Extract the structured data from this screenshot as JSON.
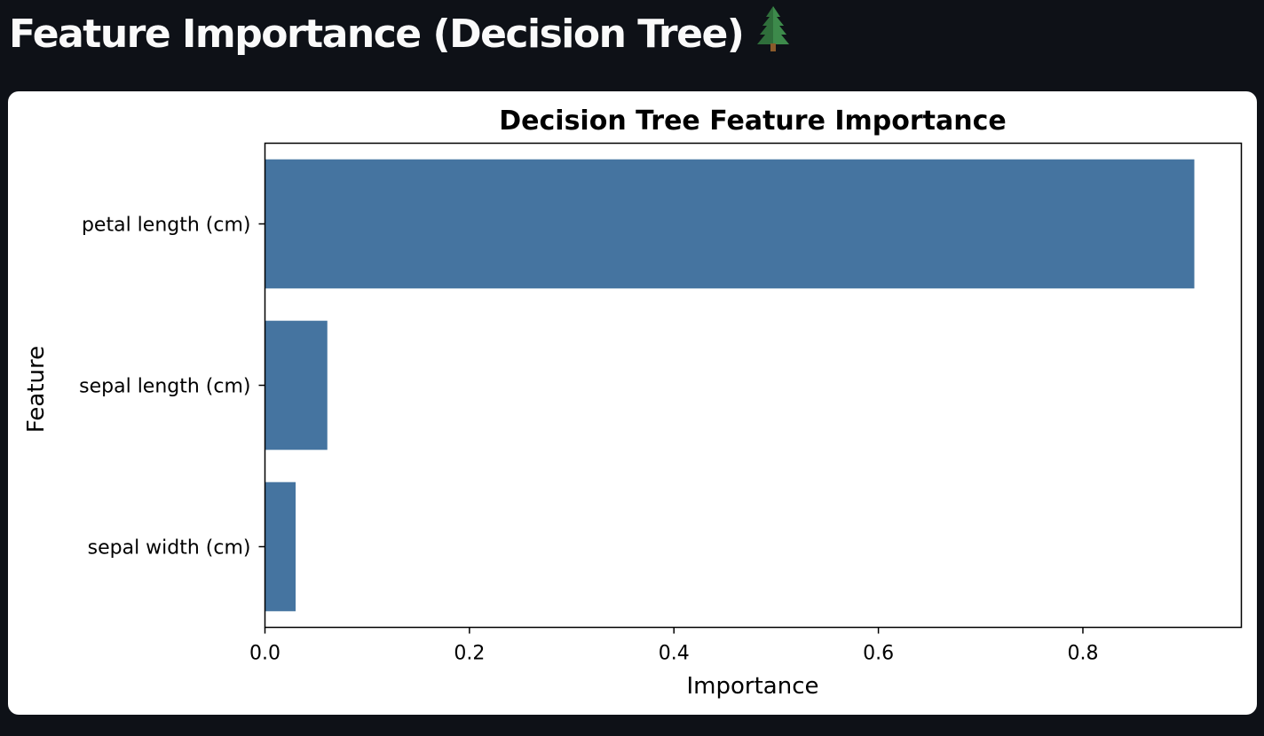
{
  "page": {
    "title": "Feature Importance (Decision Tree)",
    "title_icon": "evergreen-tree-icon"
  },
  "colors": {
    "background": "#0e1117",
    "card": "#ffffff",
    "bar": "#4574a0",
    "text": "#000000"
  },
  "chart_data": {
    "type": "bar",
    "orientation": "horizontal",
    "title": "Decision Tree Feature Importance",
    "xlabel": "Importance",
    "ylabel": "Feature",
    "categories": [
      "petal length (cm)",
      "sepal length (cm)",
      "sepal width (cm)"
    ],
    "values": [
      0.909,
      0.061,
      0.03
    ],
    "xlim": [
      0,
      0.955
    ],
    "xticks": [
      0.0,
      0.2,
      0.4,
      0.6,
      0.8
    ],
    "xtick_labels": [
      "0.0",
      "0.2",
      "0.4",
      "0.6",
      "0.8"
    ],
    "grid": false,
    "legend": "none"
  }
}
